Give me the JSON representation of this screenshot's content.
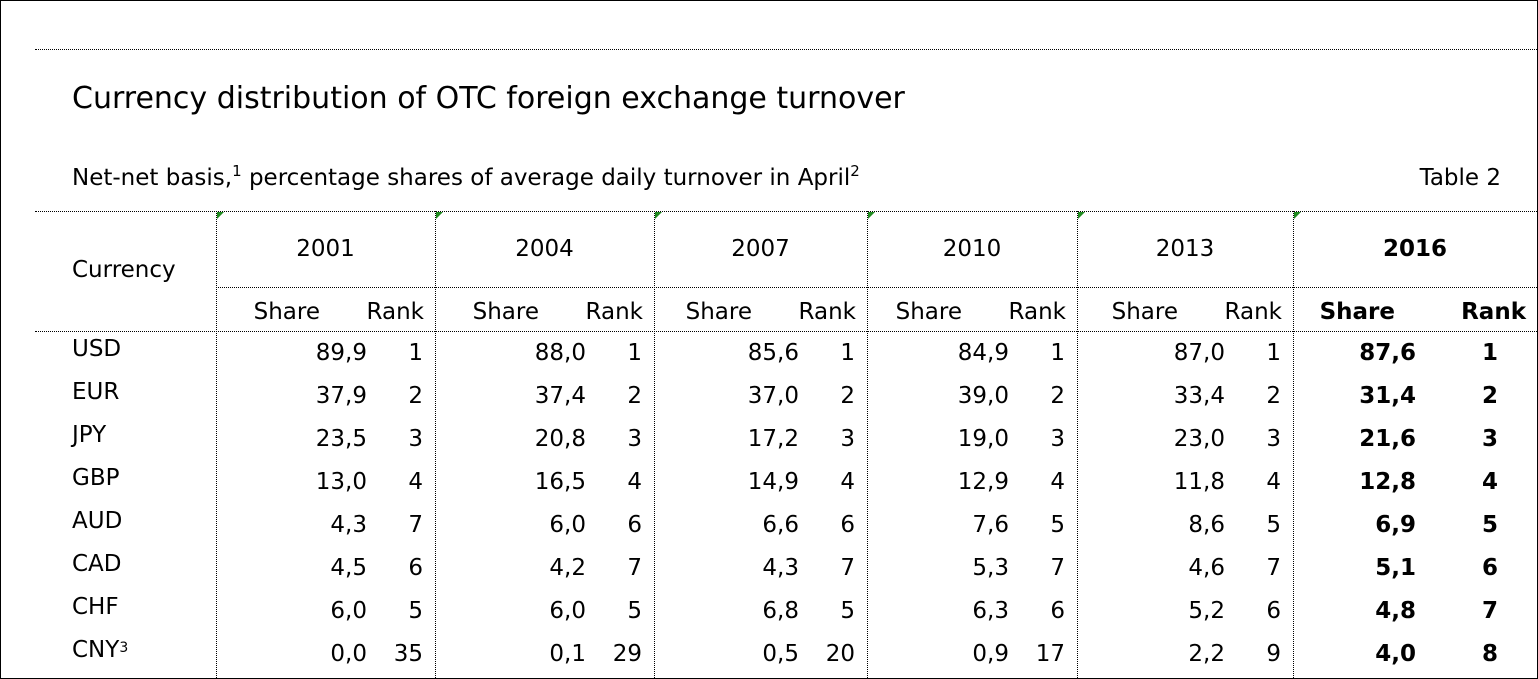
{
  "title": "Currency distribution of OTC foreign exchange turnover",
  "subtitle": {
    "part1": "Net-net basis,",
    "sup1": "1",
    "part2": " percentage shares of average daily turnover in April",
    "sup2": "2"
  },
  "table_label": "Table 2",
  "header": {
    "currency": "Currency",
    "share": "Share",
    "rank": "Rank",
    "years": [
      "2001",
      "2004",
      "2007",
      "2010",
      "2013",
      "2016"
    ]
  },
  "rows": [
    {
      "currency": "USD",
      "note": "",
      "values": [
        [
          "89,9",
          "1"
        ],
        [
          "88,0",
          "1"
        ],
        [
          "85,6",
          "1"
        ],
        [
          "84,9",
          "1"
        ],
        [
          "87,0",
          "1"
        ],
        [
          "87,6",
          "1"
        ]
      ]
    },
    {
      "currency": "EUR",
      "note": "",
      "values": [
        [
          "37,9",
          "2"
        ],
        [
          "37,4",
          "2"
        ],
        [
          "37,0",
          "2"
        ],
        [
          "39,0",
          "2"
        ],
        [
          "33,4",
          "2"
        ],
        [
          "31,4",
          "2"
        ]
      ]
    },
    {
      "currency": "JPY",
      "note": "",
      "values": [
        [
          "23,5",
          "3"
        ],
        [
          "20,8",
          "3"
        ],
        [
          "17,2",
          "3"
        ],
        [
          "19,0",
          "3"
        ],
        [
          "23,0",
          "3"
        ],
        [
          "21,6",
          "3"
        ]
      ]
    },
    {
      "currency": "GBP",
      "note": "",
      "values": [
        [
          "13,0",
          "4"
        ],
        [
          "16,5",
          "4"
        ],
        [
          "14,9",
          "4"
        ],
        [
          "12,9",
          "4"
        ],
        [
          "11,8",
          "4"
        ],
        [
          "12,8",
          "4"
        ]
      ]
    },
    {
      "currency": "AUD",
      "note": "",
      "values": [
        [
          "4,3",
          "7"
        ],
        [
          "6,0",
          "6"
        ],
        [
          "6,6",
          "6"
        ],
        [
          "7,6",
          "5"
        ],
        [
          "8,6",
          "5"
        ],
        [
          "6,9",
          "5"
        ]
      ]
    },
    {
      "currency": "CAD",
      "note": "",
      "values": [
        [
          "4,5",
          "6"
        ],
        [
          "4,2",
          "7"
        ],
        [
          "4,3",
          "7"
        ],
        [
          "5,3",
          "7"
        ],
        [
          "4,6",
          "7"
        ],
        [
          "5,1",
          "6"
        ]
      ]
    },
    {
      "currency": "CHF",
      "note": "",
      "values": [
        [
          "6,0",
          "5"
        ],
        [
          "6,0",
          "5"
        ],
        [
          "6,8",
          "5"
        ],
        [
          "6,3",
          "6"
        ],
        [
          "5,2",
          "6"
        ],
        [
          "4,8",
          "7"
        ]
      ]
    },
    {
      "currency": "CNY",
      "note": "3",
      "values": [
        [
          "0,0",
          "35"
        ],
        [
          "0,1",
          "29"
        ],
        [
          "0,5",
          "20"
        ],
        [
          "0,9",
          "17"
        ],
        [
          "2,2",
          "9"
        ],
        [
          "4,0",
          "8"
        ]
      ]
    }
  ],
  "colors": {
    "flag": "#1f8a1f",
    "text": "#000000",
    "background": "#ffffff"
  }
}
